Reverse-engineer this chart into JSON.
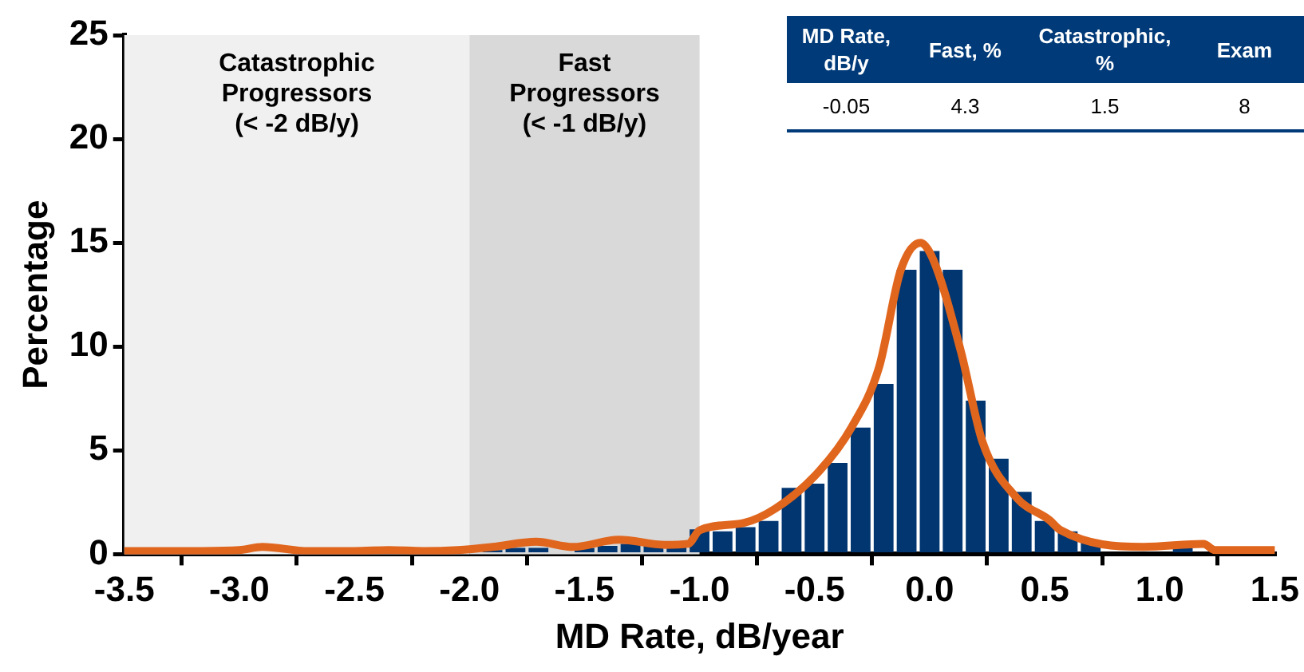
{
  "chart_data": {
    "type": "histogram",
    "xlabel": "MD Rate, dB/year",
    "ylabel": "Percentage",
    "bins": [
      -2.05,
      -1.95,
      -1.85,
      -1.75,
      -1.65,
      -1.55,
      -1.45,
      -1.35,
      -1.25,
      -1.15,
      -1.05,
      -0.95,
      -0.85,
      -0.75,
      -0.65,
      -0.55,
      -0.45,
      -0.35,
      -0.25,
      -0.15,
      -0.05,
      0.05,
      0.15,
      0.25,
      0.35,
      0.45,
      0.55,
      0.65,
      0.75,
      0.85,
      0.95,
      1.05,
      1.15,
      1.25
    ],
    "values": [
      null,
      0.2,
      0.3,
      0.3,
      null,
      0.3,
      0.4,
      0.5,
      0.4,
      0.4,
      1.2,
      1.1,
      1.3,
      1.6,
      3.2,
      3.4,
      4.4,
      6.1,
      8.2,
      13.7,
      14.6,
      13.7,
      7.4,
      4.6,
      3.0,
      1.6,
      1.1,
      0.6,
      null,
      null,
      null,
      0.3,
      null
    ],
    "color": "#023670",
    "series": [
      {
        "type": "line",
        "color": "#e0661e",
        "x": [
          -3.5,
          -3.2,
          -3.0,
          -2.9,
          -2.7,
          -2.5,
          -2.35,
          -2.2,
          -2.05,
          -1.9,
          -1.71,
          -1.55,
          -1.35,
          -1.15,
          -1.05,
          -1.0,
          -0.81,
          -0.67,
          -0.48,
          -0.34,
          -0.22,
          -0.125,
          -0.04,
          0.015,
          0.135,
          0.23,
          0.38,
          0.52,
          0.57,
          0.93,
          1.19,
          1.24,
          1.5
        ],
        "values": [
          0.15,
          0.15,
          0.2,
          0.35,
          0.15,
          0.15,
          0.2,
          0.15,
          0.2,
          0.35,
          0.6,
          0.35,
          0.7,
          0.45,
          0.5,
          1.15,
          1.5,
          2.2,
          4.0,
          6.1,
          9.0,
          13.7,
          15.0,
          14.2,
          9.8,
          5.4,
          2.7,
          1.65,
          1.15,
          0.35,
          0.5,
          0.2,
          0.2
        ]
      }
    ],
    "xlim": [
      -3.5,
      1.5
    ],
    "xticks": [
      -3.5,
      {
        "value": -3,
        "label": "-3.0"
      },
      -2.5,
      {
        "value": -2,
        "label": "-2.0"
      },
      -1.5,
      {
        "value": -1,
        "label": "-1.0"
      },
      -0.5,
      {
        "value": 0,
        "label": "0.0"
      },
      0.5,
      {
        "value": 1,
        "label": "1.0"
      },
      1.5
    ],
    "ylim": [
      0,
      25
    ],
    "yticks": [
      0,
      5,
      10,
      15,
      20,
      25
    ],
    "bands": [
      {
        "axis": "x",
        "from": -3.5,
        "to": -2,
        "label": "Catastrophic Progressors (< -2 dB/y)",
        "color": "#f0f0f0"
      },
      {
        "axis": "x",
        "from": -2,
        "to": -1,
        "label": "Fast Progressors (< -1 dB/y)",
        "color": "#d9d9d9"
      }
    ],
    "annotations": [
      "MD Rate, dB/y",
      "Fast, %",
      "Catastrophic, %",
      "Exam",
      "-0.05",
      "4.3",
      "1.5",
      "8"
    ],
    "grid": false,
    "legend": false,
    "marker": "none",
    "line_style": "solid"
  }
}
